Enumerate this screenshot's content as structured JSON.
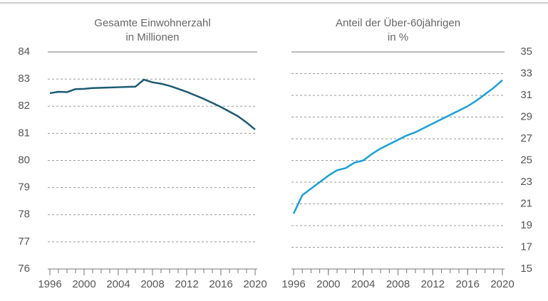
{
  "chart_data": [
    {
      "type": "line",
      "title": [
        "Gesamte Einwohnerzahl",
        "in Millionen"
      ],
      "x": [
        1996,
        1997,
        1998,
        1999,
        2000,
        2001,
        2002,
        2003,
        2004,
        2005,
        2006,
        2007,
        2008,
        2009,
        2010,
        2011,
        2012,
        2013,
        2014,
        2015,
        2016,
        2017,
        2018,
        2019,
        2020
      ],
      "series": [
        {
          "color": "#1d5a73",
          "values": [
            82.48,
            82.53,
            82.52,
            82.63,
            82.64,
            82.67,
            82.68,
            82.69,
            82.7,
            82.71,
            82.72,
            82.98,
            82.88,
            82.83,
            82.75,
            82.64,
            82.53,
            82.4,
            82.27,
            82.12,
            81.97,
            81.8,
            81.63,
            81.4,
            81.14
          ]
        }
      ],
      "xlim": [
        1996,
        2020
      ],
      "xticks": [
        1996,
        2000,
        2004,
        2008,
        2012,
        2016,
        2020
      ],
      "ylim": [
        76,
        84
      ],
      "yticks": [
        76,
        77,
        78,
        79,
        80,
        81,
        82,
        83,
        84
      ],
      "grid": true,
      "yaxis_side": "left"
    },
    {
      "type": "line",
      "title": [
        "Anteil der Über-60jährigen",
        "in %"
      ],
      "x": [
        1996,
        1997,
        1998,
        1999,
        2000,
        2001,
        2002,
        2003,
        2004,
        2005,
        2006,
        2007,
        2008,
        2009,
        2010,
        2011,
        2012,
        2013,
        2014,
        2015,
        2016,
        2017,
        2018,
        2019,
        2020
      ],
      "series": [
        {
          "color": "#1aa0d8",
          "values": [
            20.1,
            21.8,
            22.4,
            23.0,
            23.6,
            24.1,
            24.3,
            24.8,
            25.0,
            25.6,
            26.1,
            26.5,
            26.9,
            27.3,
            27.6,
            28.0,
            28.4,
            28.8,
            29.2,
            29.6,
            30.0,
            30.5,
            31.1,
            31.7,
            32.4
          ]
        }
      ],
      "xlim": [
        1996,
        2020
      ],
      "xticks": [
        1996,
        2000,
        2004,
        2008,
        2012,
        2016,
        2020
      ],
      "ylim": [
        15,
        35
      ],
      "yticks": [
        15,
        17,
        19,
        21,
        23,
        25,
        27,
        29,
        31,
        33,
        35
      ],
      "grid": true,
      "yaxis_side": "right"
    }
  ]
}
